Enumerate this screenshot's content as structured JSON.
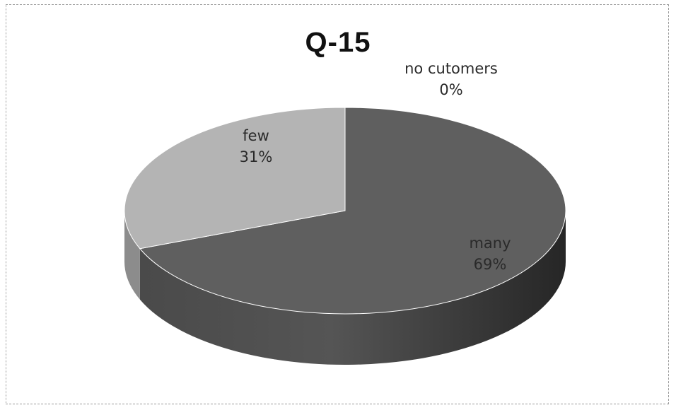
{
  "chart_data": {
    "type": "pie",
    "title": "Q-15",
    "three_d": true,
    "slices": [
      {
        "label": "many",
        "value": 69,
        "percent_label": "69%",
        "color": "#5f5f5f",
        "side_color": "#3f3f3f"
      },
      {
        "label": "no  cutomers",
        "value": 0,
        "percent_label": "0%",
        "color": "#6a6a6a",
        "side_color": "#444444"
      },
      {
        "label": "few",
        "value": 31,
        "percent_label": "31%",
        "color": "#b4b4b4",
        "side_color": "#8c8c8c"
      }
    ]
  }
}
